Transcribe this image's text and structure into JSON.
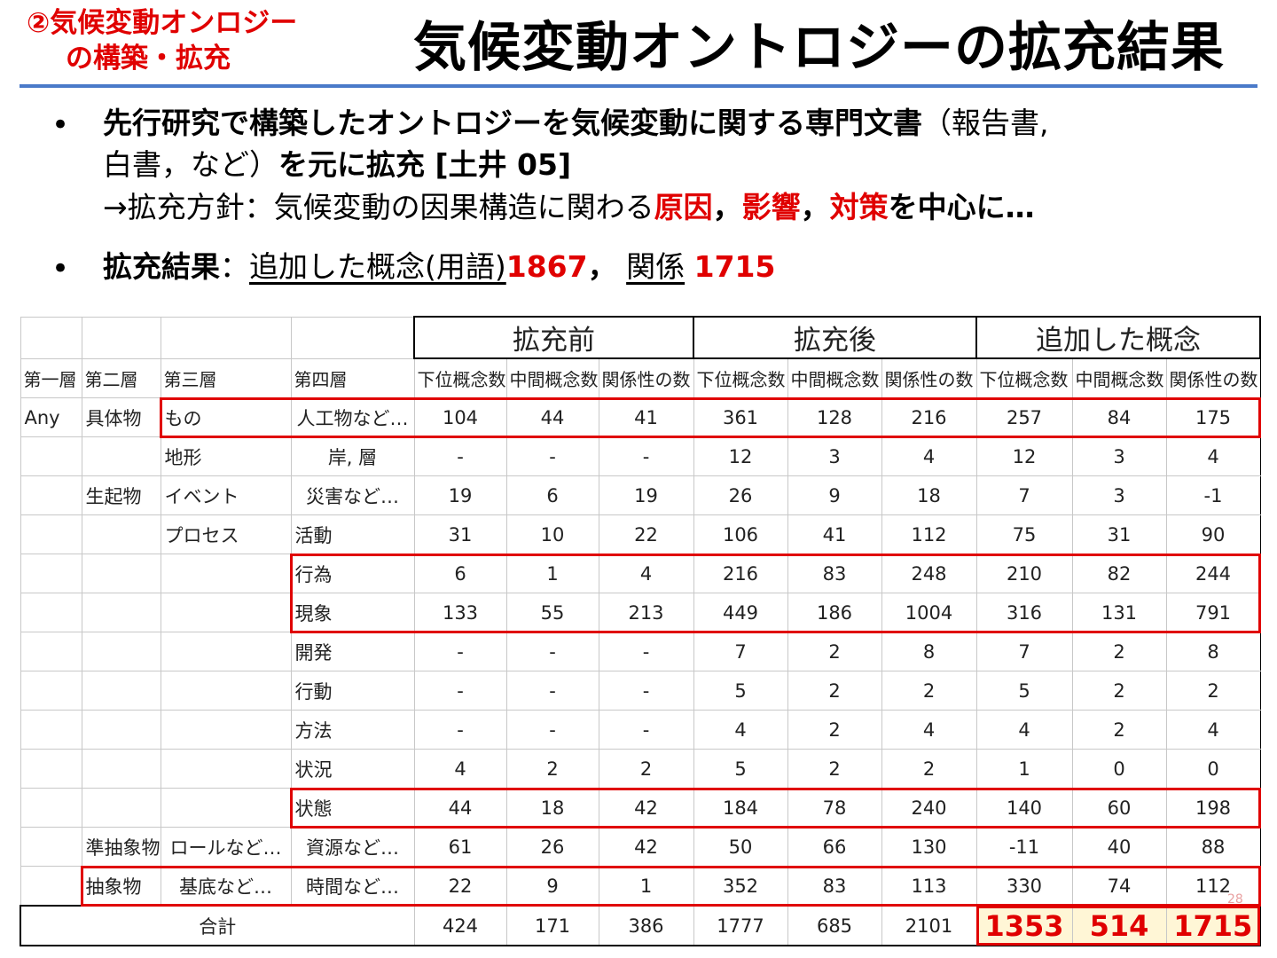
{
  "section_label": {
    "line1": "②気候変動オンロジー",
    "line2": "の構築・拡充"
  },
  "title": "気候変動オントロジーの拡充結果",
  "bullets": {
    "b1_part1": "先行研究で構築したオントロジーを気候変動に関する専門文書",
    "b1_paren": "（報告書,",
    "b1_line2_plain": "白書，など）",
    "b1_line2_bold": "を元に拡充 [土井 05]",
    "b1_line3_plain": "→拡充方針：気候変動の因果構造に関わる",
    "b1_red1": "原因",
    "b1_sep1": "，",
    "b1_red2": "影響",
    "b1_sep2": "，",
    "b1_red3": "対策",
    "b1_line3_tail": "を中心に…",
    "b2_bold": "拡充結果",
    "b2_colon": "：",
    "b2_ul1": "追加した概念(用語)",
    "b2_num1": "1867",
    "b2_sep": "，",
    "b2_ul2": "関係",
    "b2_num2": "1715"
  },
  "table": {
    "groups": [
      "拡充前",
      "拡充後",
      "追加した概念"
    ],
    "layer_headers": [
      "第一層",
      "第二層",
      "第三層",
      "第四層"
    ],
    "sub_headers": [
      "下位概念数",
      "中間概念数",
      "関係性の数",
      "下位概念数",
      "中間概念数",
      "関係性の数",
      "下位概念数",
      "中間概念数",
      "関係性の数"
    ],
    "rows": [
      {
        "l1": "Any",
        "l2": "具体物",
        "l3": "もの",
        "l4": "人工物など…",
        "v": [
          "104",
          "44",
          "41",
          "361",
          "128",
          "216",
          "257",
          "84",
          "175"
        ]
      },
      {
        "l1": "",
        "l2": "",
        "l3": "地形",
        "l4": "岸, 層",
        "v": [
          "-",
          "-",
          "-",
          "12",
          "3",
          "4",
          "12",
          "3",
          "4"
        ]
      },
      {
        "l1": "",
        "l2": "生起物",
        "l3": "イベント",
        "l4": "災害など…",
        "v": [
          "19",
          "6",
          "19",
          "26",
          "9",
          "18",
          "7",
          "3",
          "-1"
        ]
      },
      {
        "l1": "",
        "l2": "",
        "l3": "プロセス",
        "l4": "活動",
        "v": [
          "31",
          "10",
          "22",
          "106",
          "41",
          "112",
          "75",
          "31",
          "90"
        ]
      },
      {
        "l1": "",
        "l2": "",
        "l3": "",
        "l4": "行為",
        "v": [
          "6",
          "1",
          "4",
          "216",
          "83",
          "248",
          "210",
          "82",
          "244"
        ]
      },
      {
        "l1": "",
        "l2": "",
        "l3": "",
        "l4": "現象",
        "v": [
          "133",
          "55",
          "213",
          "449",
          "186",
          "1004",
          "316",
          "131",
          "791"
        ]
      },
      {
        "l1": "",
        "l2": "",
        "l3": "",
        "l4": "開発",
        "v": [
          "-",
          "-",
          "-",
          "7",
          "2",
          "8",
          "7",
          "2",
          "8"
        ]
      },
      {
        "l1": "",
        "l2": "",
        "l3": "",
        "l4": "行動",
        "v": [
          "-",
          "-",
          "-",
          "5",
          "2",
          "2",
          "5",
          "2",
          "2"
        ]
      },
      {
        "l1": "",
        "l2": "",
        "l3": "",
        "l4": "方法",
        "v": [
          "-",
          "-",
          "-",
          "4",
          "2",
          "4",
          "4",
          "2",
          "4"
        ]
      },
      {
        "l1": "",
        "l2": "",
        "l3": "",
        "l4": "状況",
        "v": [
          "4",
          "2",
          "2",
          "5",
          "2",
          "2",
          "1",
          "0",
          "0"
        ]
      },
      {
        "l1": "",
        "l2": "",
        "l3": "",
        "l4": "状態",
        "v": [
          "44",
          "18",
          "42",
          "184",
          "78",
          "240",
          "140",
          "60",
          "198"
        ]
      },
      {
        "l1": "",
        "l2": "準抽象物",
        "l3": "ロールなど…",
        "l4": "資源など…",
        "v": [
          "61",
          "26",
          "42",
          "50",
          "66",
          "130",
          "-11",
          "40",
          "88"
        ]
      },
      {
        "l1": "",
        "l2": "抽象物",
        "l3": "基底など…",
        "l4": "時間など…",
        "v": [
          "22",
          "9",
          "1",
          "352",
          "83",
          "113",
          "330",
          "74",
          "112"
        ]
      }
    ],
    "total_label": "合計",
    "total": [
      "424",
      "171",
      "386",
      "1777",
      "685",
      "2101",
      "1353",
      "514",
      "1715"
    ]
  },
  "page_number": "28",
  "colors": {
    "accent_red": "#e00000",
    "title_rule": "#4a7ac9",
    "highlight_bg": "#fff6d6"
  }
}
